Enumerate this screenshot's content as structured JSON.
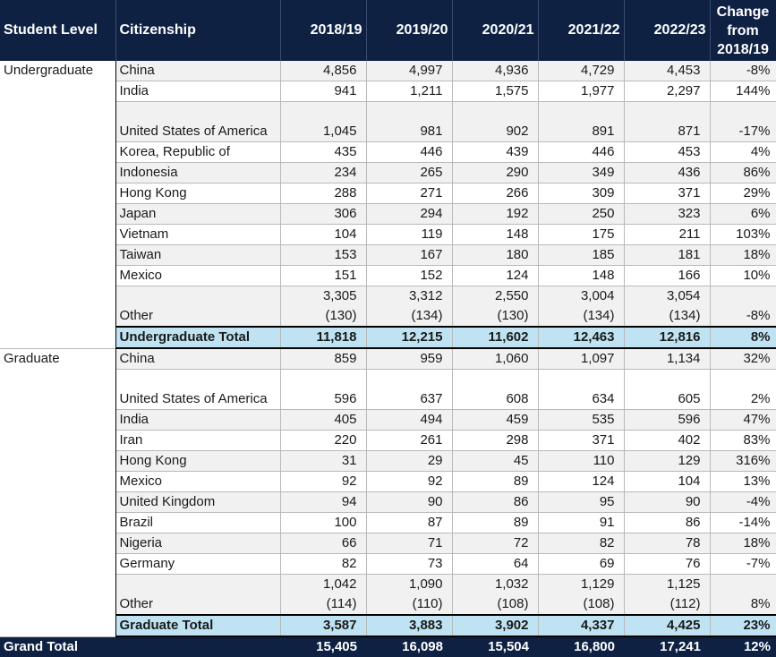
{
  "headers": {
    "level": "Student Level",
    "citizenship": "Citizenship",
    "years": [
      "2018/19",
      "2019/20",
      "2020/21",
      "2021/22",
      "2022/23"
    ],
    "change": "Change from 2018/19"
  },
  "undergraduate": {
    "level": "Undergraduate",
    "rows": [
      {
        "country": "China",
        "values": [
          "4,856",
          "4,997",
          "4,936",
          "4,729",
          "4,453"
        ],
        "change": "-8%"
      },
      {
        "country": "India",
        "values": [
          "941",
          "1,211",
          "1,575",
          "1,977",
          "2,297"
        ],
        "change": "144%"
      },
      {
        "country": "United States of America",
        "values": [
          "1,045",
          "981",
          "902",
          "891",
          "871"
        ],
        "change": "-17%"
      },
      {
        "country": "Korea, Republic of",
        "values": [
          "435",
          "446",
          "439",
          "446",
          "453"
        ],
        "change": "4%"
      },
      {
        "country": "Indonesia",
        "values": [
          "234",
          "265",
          "290",
          "349",
          "436"
        ],
        "change": "86%"
      },
      {
        "country": "Hong Kong",
        "values": [
          "288",
          "271",
          "266",
          "309",
          "371"
        ],
        "change": "29%"
      },
      {
        "country": "Japan",
        "values": [
          "306",
          "294",
          "192",
          "250",
          "323"
        ],
        "change": "6%"
      },
      {
        "country": "Vietnam",
        "values": [
          "104",
          "119",
          "148",
          "175",
          "211"
        ],
        "change": "103%"
      },
      {
        "country": "Taiwan",
        "values": [
          "153",
          "167",
          "180",
          "185",
          "181"
        ],
        "change": "18%"
      },
      {
        "country": "Mexico",
        "values": [
          "151",
          "152",
          "124",
          "148",
          "166"
        ],
        "change": "10%"
      }
    ],
    "other": {
      "country": "Other",
      "values": [
        "3,305",
        "3,312",
        "2,550",
        "3,004",
        "3,054"
      ],
      "sub_values": [
        "(130)",
        "(134)",
        "(130)",
        "(134)",
        "(134)"
      ],
      "change": "-8%"
    },
    "total": {
      "label": "Undergraduate Total",
      "values": [
        "11,818",
        "12,215",
        "11,602",
        "12,463",
        "12,816"
      ],
      "change": "8%"
    }
  },
  "graduate": {
    "level": "Graduate",
    "rows": [
      {
        "country": "China",
        "values": [
          "859",
          "959",
          "1,060",
          "1,097",
          "1,134"
        ],
        "change": "32%"
      },
      {
        "country": "United States of America",
        "values": [
          "596",
          "637",
          "608",
          "634",
          "605"
        ],
        "change": "2%"
      },
      {
        "country": "India",
        "values": [
          "405",
          "494",
          "459",
          "535",
          "596"
        ],
        "change": "47%"
      },
      {
        "country": "Iran",
        "values": [
          "220",
          "261",
          "298",
          "371",
          "402"
        ],
        "change": "83%"
      },
      {
        "country": "Hong Kong",
        "values": [
          "31",
          "29",
          "45",
          "110",
          "129"
        ],
        "change": "316%"
      },
      {
        "country": "Mexico",
        "values": [
          "92",
          "92",
          "89",
          "124",
          "104"
        ],
        "change": "13%"
      },
      {
        "country": "United Kingdom",
        "values": [
          "94",
          "90",
          "86",
          "95",
          "90"
        ],
        "change": "-4%"
      },
      {
        "country": "Brazil",
        "values": [
          "100",
          "87",
          "89",
          "91",
          "86"
        ],
        "change": "-14%"
      },
      {
        "country": "Nigeria",
        "values": [
          "66",
          "71",
          "72",
          "82",
          "78"
        ],
        "change": "18%"
      },
      {
        "country": "Germany",
        "values": [
          "82",
          "73",
          "64",
          "69",
          "76"
        ],
        "change": "-7%"
      }
    ],
    "other": {
      "country": "Other",
      "values": [
        "1,042",
        "1,090",
        "1,032",
        "1,129",
        "1,125"
      ],
      "sub_values": [
        "(114)",
        "(110)",
        "(108)",
        "(108)",
        "(112)"
      ],
      "change": "8%"
    },
    "total": {
      "label": "Graduate Total",
      "values": [
        "3,587",
        "3,883",
        "3,902",
        "4,337",
        "4,425"
      ],
      "change": "23%"
    }
  },
  "grand_total": {
    "label": "Grand Total",
    "values": [
      "15,405",
      "16,098",
      "15,504",
      "16,800",
      "17,241"
    ],
    "change": "12%"
  },
  "colors": {
    "header_bg": "#0e2143",
    "subtotal_bg": "#bfe3f3",
    "zebra_bg": "#f1f1f1"
  }
}
